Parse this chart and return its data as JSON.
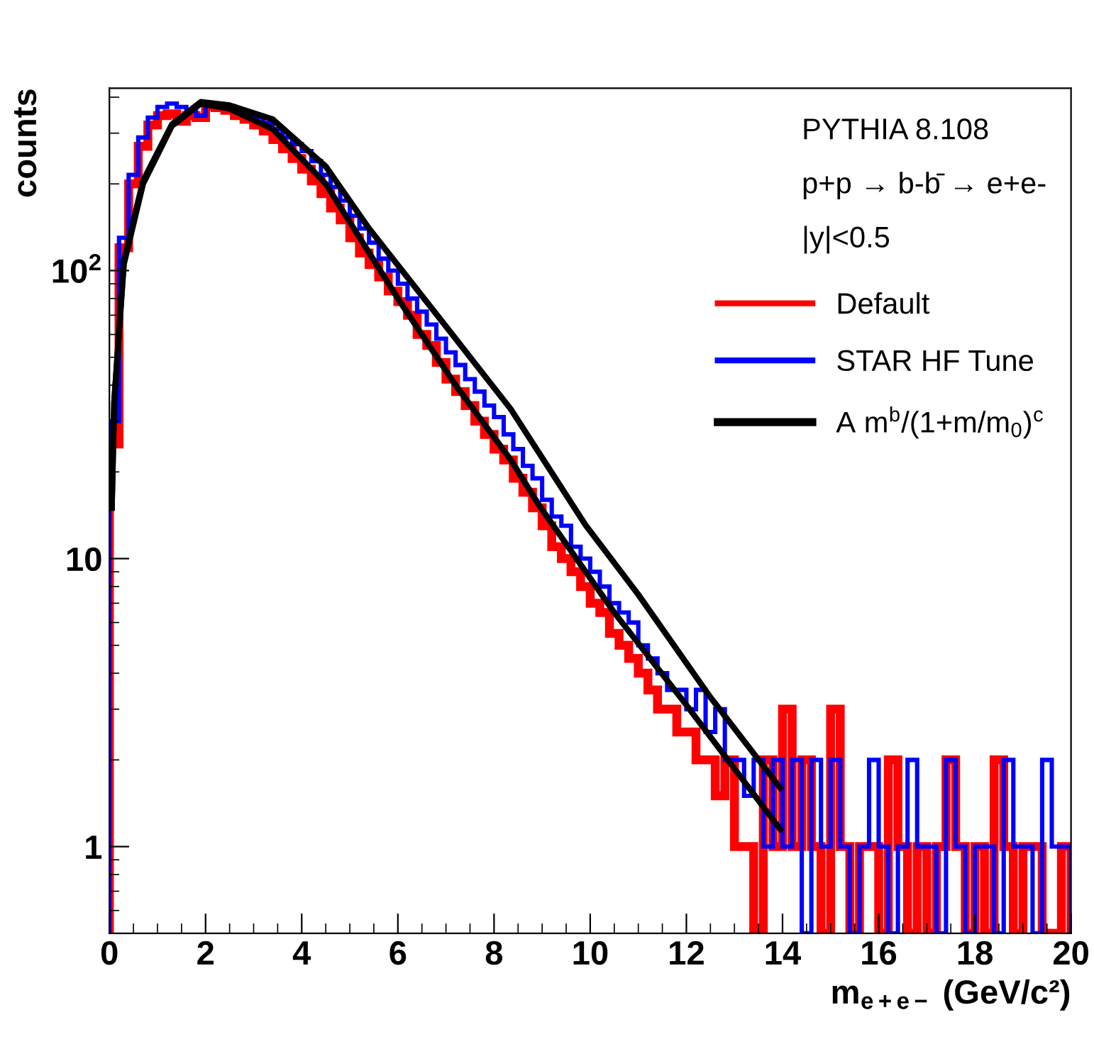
{
  "chart_data": {
    "type": "histogram",
    "xlabel": "m$_{e+e−}$ (GeV/c²)",
    "ylabel": "counts",
    "annotations": [
      "PYTHIA 8.108",
      "p+p → b-b̄ → e+e-",
      "|y|<0.5"
    ],
    "bins": [
      0,
      0.2,
      0.4,
      0.6,
      0.8,
      1,
      1.2,
      1.4,
      1.6,
      1.8,
      2,
      2.2,
      2.4,
      2.6,
      2.8,
      3,
      3.2,
      3.4,
      3.6,
      3.8,
      4,
      4.2,
      4.4,
      4.6,
      4.8,
      5,
      5.2,
      5.4,
      5.6,
      5.8,
      6,
      6.2,
      6.4,
      6.6,
      6.8,
      7,
      7.2,
      7.4,
      7.6,
      7.8,
      8,
      8.2,
      8.4,
      8.6,
      8.8,
      9,
      9.2,
      9.4,
      9.6,
      9.8,
      10,
      10.2,
      10.4,
      10.6,
      10.8,
      11,
      11.2,
      11.4,
      11.6,
      11.8,
      12,
      12.2,
      12.4,
      12.6,
      12.8,
      13,
      13.2,
      13.4,
      13.6,
      13.8,
      14,
      14.2,
      14.4,
      14.6,
      14.8,
      15,
      15.2,
      15.4,
      15.6,
      15.8,
      16,
      16.2,
      16.4,
      16.6,
      16.8,
      17,
      17.2,
      17.4,
      17.6,
      17.8,
      18,
      18.2,
      18.4,
      18.6,
      18.8,
      19,
      19.2,
      19.4,
      19.6,
      19.8,
      20
    ],
    "series": [
      {
        "name": "Default",
        "color": "#ff0000",
        "values": [
          25,
          120,
          200,
          270,
          320,
          345,
          350,
          330,
          345,
          340,
          372,
          368,
          360,
          345,
          335,
          320,
          305,
          285,
          265,
          245,
          225,
          205,
          185,
          165,
          150,
          130,
          115,
          105,
          95,
          85,
          78,
          70,
          60,
          55,
          48,
          42,
          38,
          34,
          30,
          27,
          24,
          22,
          19,
          17,
          15,
          13,
          11,
          10,
          9,
          8,
          7,
          6.5,
          5.5,
          5,
          4.5,
          4,
          3.5,
          3,
          3,
          2.5,
          2.5,
          2,
          2,
          1.5,
          2,
          1,
          1,
          null,
          2,
          1,
          3,
          1,
          2,
          1,
          null,
          3,
          1,
          null,
          1,
          1,
          null,
          2,
          1,
          null,
          1,
          null,
          1,
          2,
          1,
          null,
          1,
          null,
          2,
          1,
          null,
          1,
          1,
          null,
          null,
          1
        ]
      },
      {
        "name": "STAR HF Tune",
        "color": "#0000ff",
        "values": [
          30,
          130,
          215,
          290,
          340,
          370,
          380,
          370,
          360,
          345,
          380,
          378,
          372,
          362,
          350,
          340,
          325,
          310,
          290,
          275,
          260,
          240,
          215,
          195,
          175,
          155,
          140,
          125,
          110,
          100,
          90,
          80,
          72,
          65,
          58,
          52,
          47,
          42,
          38,
          34,
          31,
          27,
          24,
          21,
          19,
          16,
          14,
          13,
          11,
          10,
          9,
          8,
          7,
          6.5,
          6,
          5,
          4.5,
          4,
          3.5,
          3.5,
          3,
          3.5,
          2.5,
          3,
          2,
          2,
          1.5,
          2,
          1,
          2,
          1,
          2,
          null,
          2,
          1,
          2,
          1,
          null,
          1,
          2,
          1,
          null,
          1,
          2,
          1,
          1,
          null,
          2,
          1,
          null,
          1,
          1,
          null,
          2,
          1,
          1,
          null,
          2,
          1,
          1
        ]
      },
      {
        "name": "A m$^{b}$/(1+m/m$_{0}$)$^{c}$",
        "type": "line",
        "color": "#000000",
        "x": [
          0.05,
          0.1,
          0.3,
          0.7,
          1.3,
          1.9,
          2.5,
          3.4,
          4.5,
          5.4,
          7,
          8.35,
          9.9,
          11,
          12.5,
          13.95
        ],
        "values": [
          15,
          35,
          108,
          205,
          322,
          385,
          375,
          335,
          230,
          140,
          64,
          33,
          13.1,
          7.5,
          3.3,
          1.6
        ]
      },
      {
        "type": "line",
        "color": "#000000",
        "x": [
          0.05,
          0.1,
          0.3,
          0.7,
          1.3,
          1.9,
          2.5,
          3.4,
          4.5,
          6,
          7.2,
          8.35,
          8.95,
          10.5,
          12,
          13.95
        ],
        "values": [
          15,
          35,
          105,
          200,
          318,
          380,
          365,
          310,
          200,
          80,
          40,
          22,
          15.2,
          6.5,
          3.1,
          1.15
        ]
      }
    ],
    "xlim": [
      0,
      20
    ],
    "xticks": [
      0,
      2,
      4,
      6,
      8,
      10,
      12,
      14,
      16,
      18,
      20
    ],
    "log": "y",
    "ylim": [
      0.5,
      430
    ],
    "yticks": [
      1,
      10,
      {
        "value": 100,
        "label": "10$^{2}$"
      }
    ],
    "grid": false,
    "legend": "top right"
  }
}
